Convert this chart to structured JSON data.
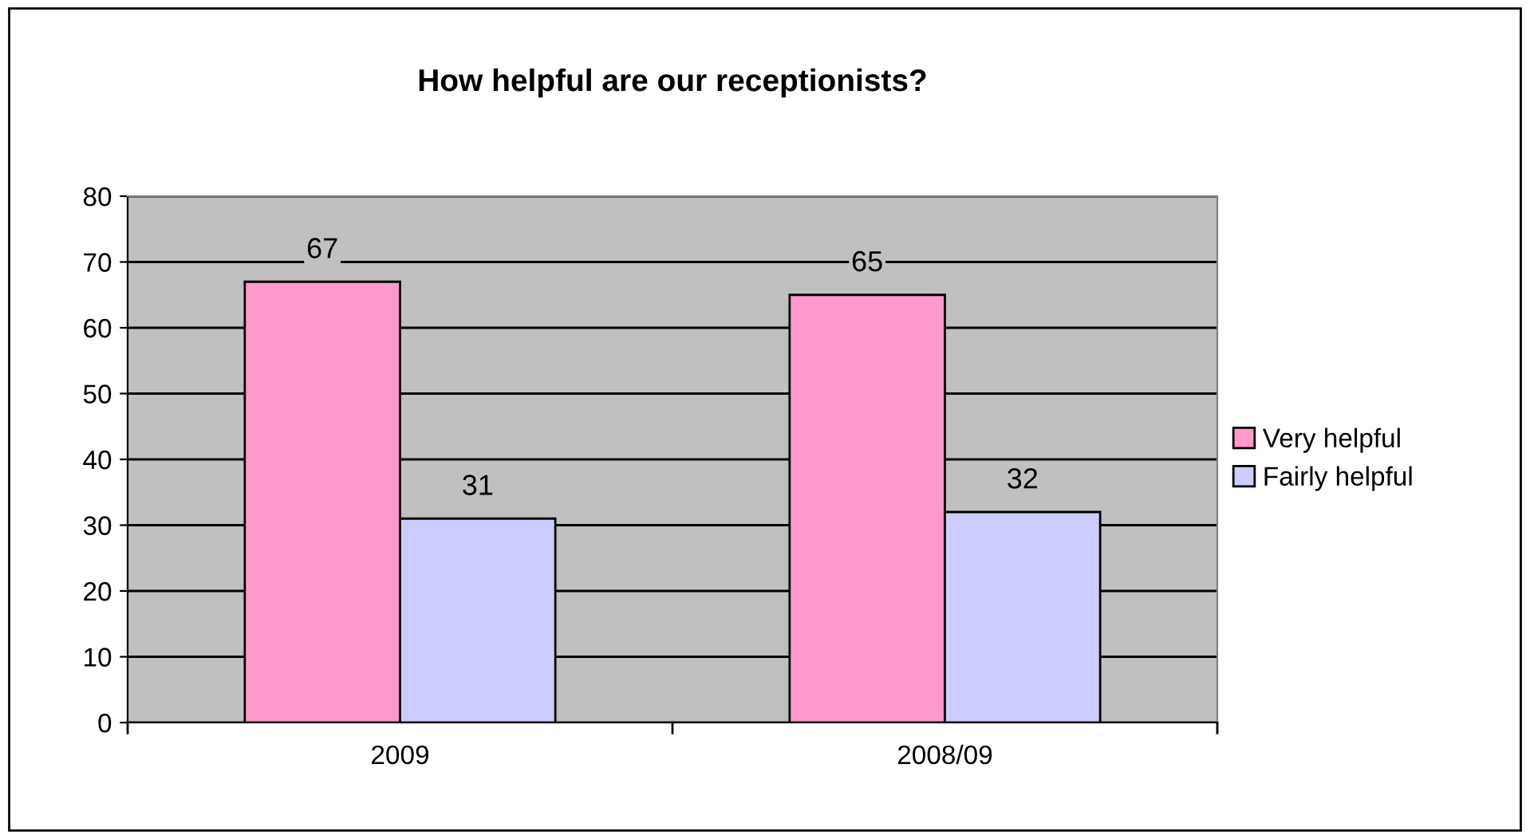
{
  "chart_data": {
    "type": "bar",
    "title": "How helpful are our receptionists?",
    "categories": [
      "2009",
      "2008/09"
    ],
    "series": [
      {
        "name": "Very helpful",
        "color": "#ff99cc",
        "values": [
          67,
          65
        ]
      },
      {
        "name": "Fairly helpful",
        "color": "#ccccff",
        "values": [
          31,
          32
        ]
      }
    ],
    "ylim": [
      0,
      80
    ],
    "yticks": [
      0,
      10,
      20,
      30,
      40,
      50,
      60,
      70,
      80
    ],
    "grid": "y",
    "legend": "right",
    "data_labels": true
  }
}
